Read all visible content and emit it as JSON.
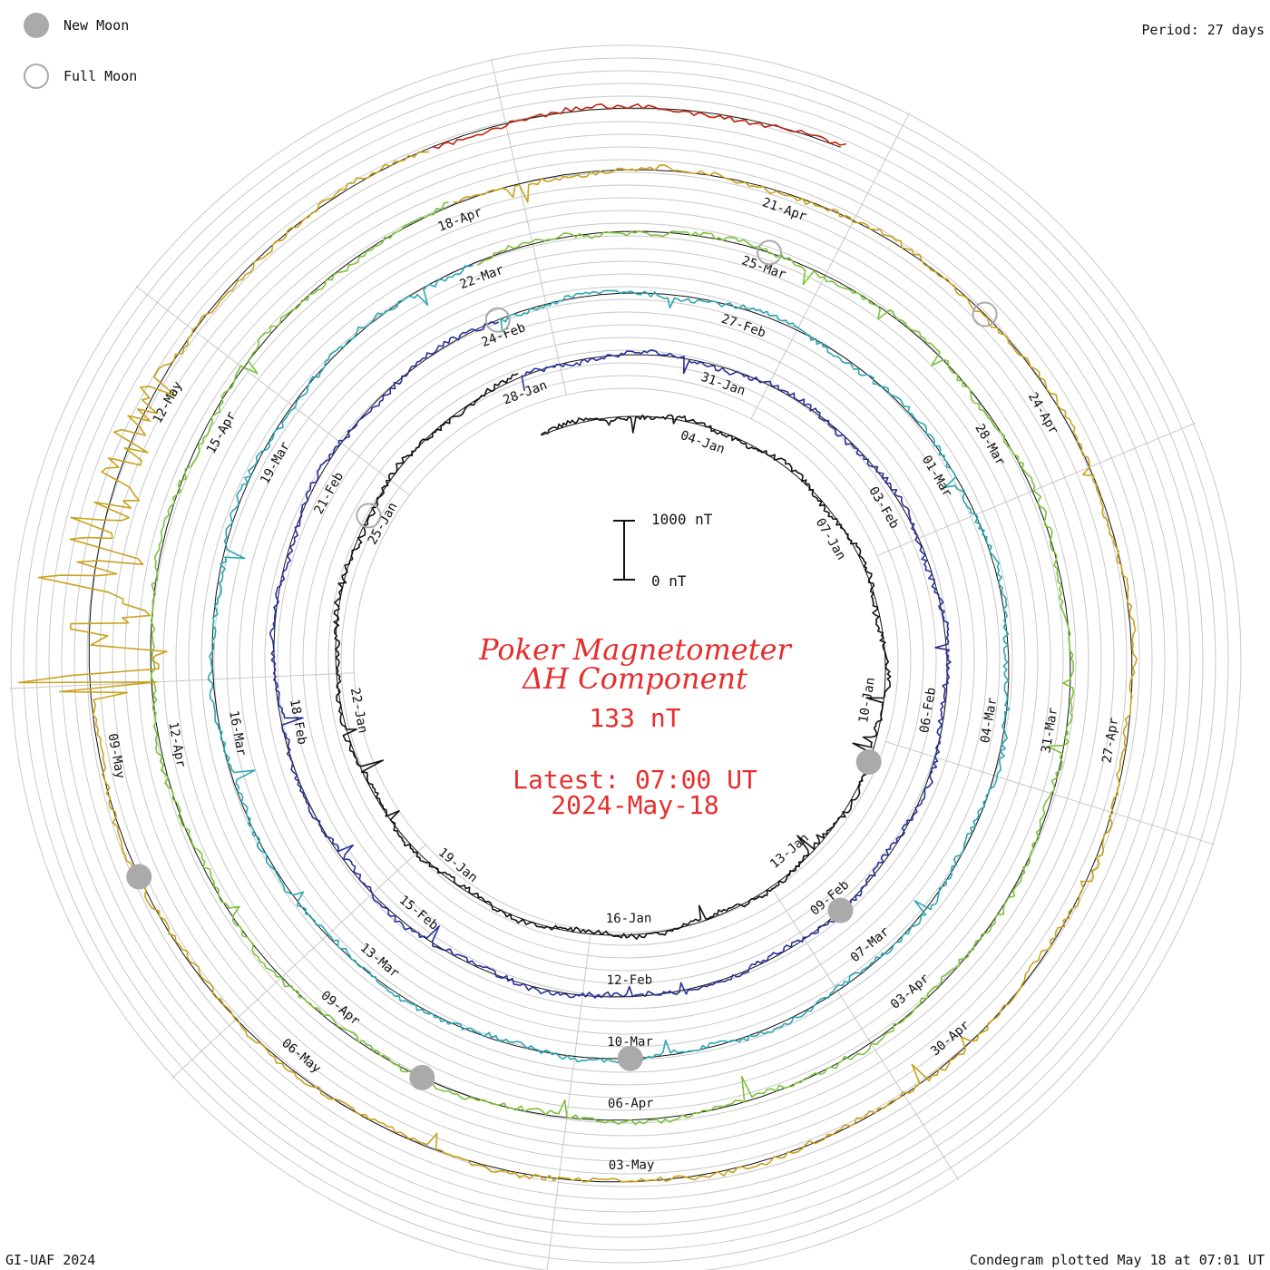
{
  "header": {
    "period_text": "Period: 27 days"
  },
  "legend": {
    "new_moon_label": "New Moon",
    "full_moon_label": "Full Moon",
    "new_moon_color": "#aaaaaa",
    "full_moon_color": "#aaaaaa"
  },
  "title": {
    "line1": "Poker Magnetometer",
    "line2": "ΔH Component",
    "value": "133 nT",
    "latest_line1": "Latest: 07:00 UT",
    "latest_line2": "2024-May-18",
    "color": "#e62e2e"
  },
  "scale_bar": {
    "top_label": "1000 nT",
    "bottom_label": "0 nT"
  },
  "footer": {
    "left": "GI-UAF 2024",
    "right": "Condegram plotted May 18 at 07:01 UT"
  },
  "chart_data": {
    "type": "line",
    "subtype": "spiral condegram (polar time series)",
    "period_days": 27,
    "start_date": "2024-01-01",
    "end_datetime": "2024-05-18T07:00Z",
    "y_unit": "nT",
    "scale_reference_nT": [
      0,
      1000
    ],
    "grid": true,
    "series": [
      {
        "color": "#111111",
        "date_labels": [
          "04-Jan",
          "07-Jan",
          "10-Jan",
          "13-Jan",
          "16-Jan",
          "19-Jan",
          "22-Jan",
          "25-Jan"
        ]
      },
      {
        "color": "#27309a",
        "date_labels": [
          "28-Jan",
          "31-Jan",
          "03-Feb",
          "06-Feb",
          "09-Feb",
          "12-Feb",
          "15-Feb",
          "18-Feb",
          "21-Feb"
        ]
      },
      {
        "color": "#2aa7b3",
        "date_labels": [
          "24-Feb",
          "27-Feb",
          "01-Mar",
          "04-Mar",
          "07-Mar",
          "10-Mar",
          "13-Mar",
          "16-Mar",
          "19-Mar"
        ]
      },
      {
        "color": "#7cc23a",
        "date_labels": [
          "22-Mar",
          "25-Mar",
          "28-Mar",
          "31-Mar",
          "03-Apr",
          "06-Apr",
          "09-Apr",
          "12-Apr",
          "15-Apr"
        ]
      },
      {
        "color": "#c9a21c",
        "date_labels": [
          "18-Apr",
          "21-Apr",
          "24-Apr",
          "27-Apr",
          "30-Apr",
          "03-May",
          "06-May",
          "09-May",
          "12-May"
        ]
      },
      {
        "color": "#c0240f"
      }
    ],
    "new_moons": [
      "11-Jan",
      "09-Feb",
      "10-Mar",
      "08-Apr",
      "08-May"
    ],
    "full_moons": [
      "25-Jan",
      "24-Feb",
      "25-Mar",
      "23-Apr"
    ],
    "storm": {
      "date": "10-May",
      "approx_peak_deviation_nT": 1000
    }
  }
}
